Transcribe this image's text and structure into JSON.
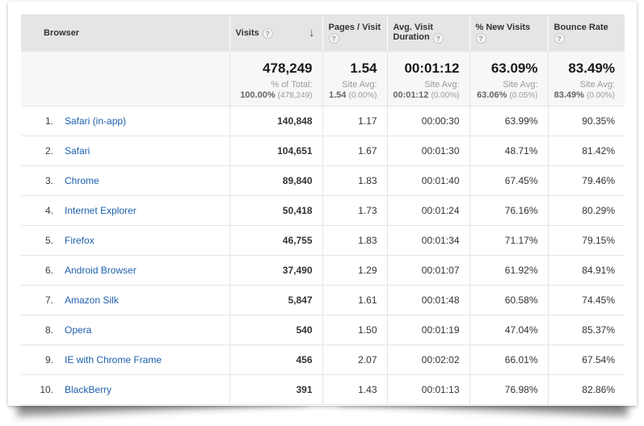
{
  "icons": {
    "help": "?",
    "sort_desc": "↓"
  },
  "colors": {
    "link_blue": "#1C5FAC",
    "header_bg": "#E5E5E5",
    "summary_bg": "#F7F7F7",
    "border": "#E5E5E5"
  },
  "table": {
    "columns": [
      {
        "label": "Browser"
      },
      {
        "label": "Visits"
      },
      {
        "label": "Pages / Visit"
      },
      {
        "label": "Avg. Visit Duration"
      },
      {
        "label": "% New Visits"
      },
      {
        "label": "Bounce Rate"
      }
    ],
    "summary": {
      "visits": {
        "value": "478,249",
        "sub_label": "% of Total:",
        "sub_value": "100.00%",
        "sub_paren": "(478,249)"
      },
      "pages": {
        "value": "1.54",
        "sub_label": "Site Avg:",
        "sub_value": "1.54",
        "sub_paren": "(0.00%)"
      },
      "duration": {
        "value": "00:01:12",
        "sub_label": "Site Avg:",
        "sub_value": "00:01:12",
        "sub_paren": "(0.00%)"
      },
      "new": {
        "value": "63.09%",
        "sub_label": "Site Avg:",
        "sub_value": "63.06%",
        "sub_paren": "(0.05%)"
      },
      "bounce": {
        "value": "83.49%",
        "sub_label": "Site Avg:",
        "sub_value": "83.49%",
        "sub_paren": "(0.00%)"
      }
    },
    "rows": [
      {
        "rank": "1.",
        "browser": "Safari (in-app)",
        "visits": "140,848",
        "pages": "1.17",
        "duration": "00:00:30",
        "new": "63.99%",
        "bounce": "90.35%"
      },
      {
        "rank": "2.",
        "browser": "Safari",
        "visits": "104,651",
        "pages": "1.67",
        "duration": "00:01:30",
        "new": "48.71%",
        "bounce": "81.42%"
      },
      {
        "rank": "3.",
        "browser": "Chrome",
        "visits": "89,840",
        "pages": "1.83",
        "duration": "00:01:40",
        "new": "67.45%",
        "bounce": "79.46%"
      },
      {
        "rank": "4.",
        "browser": "Internet Explorer",
        "visits": "50,418",
        "pages": "1.73",
        "duration": "00:01:24",
        "new": "76.16%",
        "bounce": "80.29%"
      },
      {
        "rank": "5.",
        "browser": "Firefox",
        "visits": "46,755",
        "pages": "1.83",
        "duration": "00:01:34",
        "new": "71.17%",
        "bounce": "79.15%"
      },
      {
        "rank": "6.",
        "browser": "Android Browser",
        "visits": "37,490",
        "pages": "1.29",
        "duration": "00:01:07",
        "new": "61.92%",
        "bounce": "84.91%"
      },
      {
        "rank": "7.",
        "browser": "Amazon Silk",
        "visits": "5,847",
        "pages": "1.61",
        "duration": "00:01:48",
        "new": "60.58%",
        "bounce": "74.45%"
      },
      {
        "rank": "8.",
        "browser": "Opera",
        "visits": "540",
        "pages": "1.50",
        "duration": "00:01:19",
        "new": "47.04%",
        "bounce": "85.37%"
      },
      {
        "rank": "9.",
        "browser": "IE with Chrome Frame",
        "visits": "456",
        "pages": "2.07",
        "duration": "00:02:02",
        "new": "66.01%",
        "bounce": "67.54%"
      },
      {
        "rank": "10.",
        "browser": "BlackBerry",
        "visits": "391",
        "pages": "1.43",
        "duration": "00:01:13",
        "new": "76.98%",
        "bounce": "82.86%"
      }
    ]
  }
}
